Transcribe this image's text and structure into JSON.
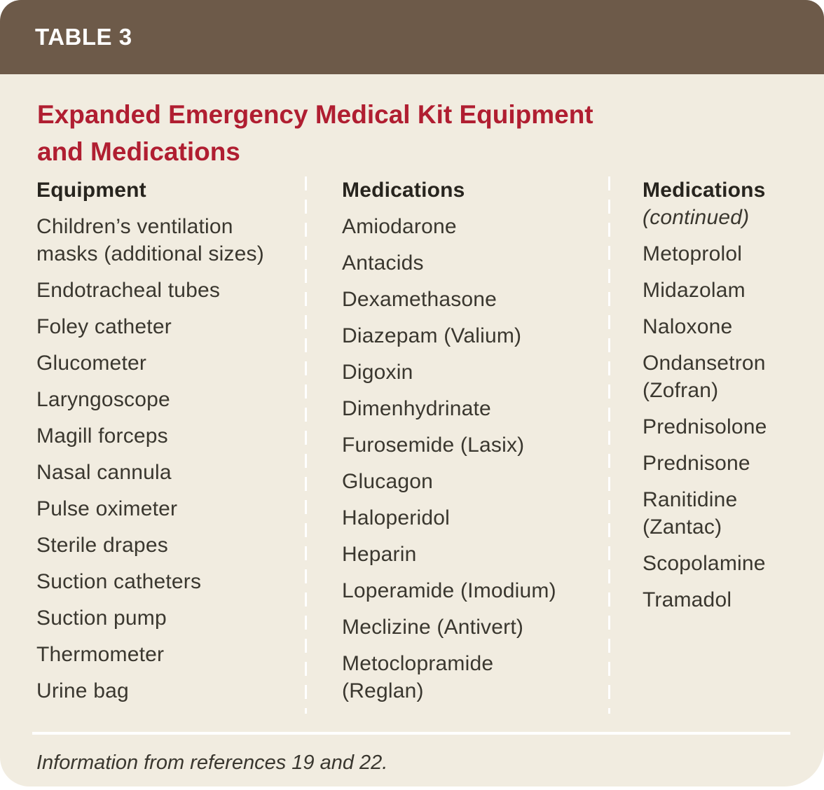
{
  "table_label": "TABLE 3",
  "title": "Expanded Emergency Medical Kit Equipment and Medications",
  "columns": [
    {
      "header": "Equipment",
      "items": [
        "Children’s ventilation masks (additional sizes)",
        "Endotracheal tubes",
        "Foley catheter",
        "Glucometer",
        "Laryngoscope",
        "Magill forceps",
        "Nasal cannula",
        "Pulse oximeter",
        "Sterile drapes",
        "Suction catheters",
        "Suction pump",
        "Thermometer",
        "Urine bag"
      ]
    },
    {
      "header": "Medications",
      "items": [
        "Amiodarone",
        "Antacids",
        "Dexamethasone",
        "Diazepam (Valium)",
        "Digoxin",
        "Dimenhydrinate",
        "Furosemide (Lasix)",
        "Glucagon",
        "Haloperidol",
        "Heparin",
        "Loperamide (Imodium)",
        "Meclizine (Antivert)",
        "Metoclopramide (Reglan)"
      ]
    },
    {
      "header": "Medications",
      "subheader": "(continued)",
      "items": [
        "Metoprolol",
        "Midazolam",
        "Naloxone",
        "Ondansetron (Zofran)",
        "Prednisolone",
        "Prednisone",
        "Ranitidine (Zantac)",
        "Scopolamine",
        "Tramadol"
      ]
    }
  ],
  "footnote": "Information from references 19 and 22.",
  "colors": {
    "header_bg": "#6d5a49",
    "body_bg": "#f1ece0",
    "title_red": "#b01e31",
    "text": "#3a372f",
    "heading_text": "#27241e",
    "rule_white": "#ffffff"
  }
}
